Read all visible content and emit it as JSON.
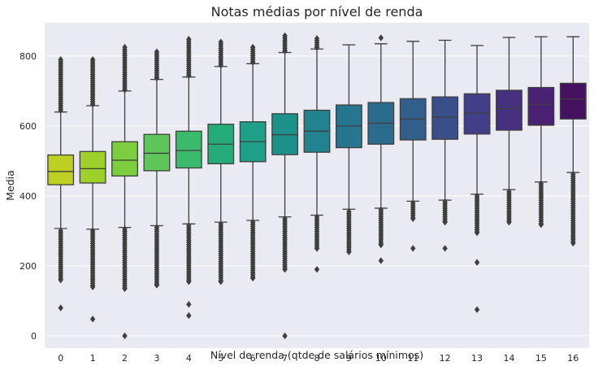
{
  "chart_data": {
    "type": "box",
    "title": "Notas médias por nível de renda",
    "xlabel": "Nível de renda (qtde de salários mínimos)",
    "ylabel": "Media",
    "categories": [
      "0",
      "1",
      "2",
      "3",
      "4",
      "5",
      "6",
      "7",
      "8",
      "9",
      "10",
      "11",
      "12",
      "13",
      "14",
      "15",
      "16"
    ],
    "ylim": [
      -35,
      895
    ],
    "yticks": [
      0,
      200,
      400,
      600,
      800
    ],
    "grid": true,
    "colors": [
      "#bdd023",
      "#9dd02a",
      "#7ccd3f",
      "#5ec65a",
      "#3bb96d",
      "#25ac79",
      "#1f9f87",
      "#1e918b",
      "#22838e",
      "#27768f",
      "#2b6b8e",
      "#325e8c",
      "#3a4f8a",
      "#413f87",
      "#463180",
      "#482173",
      "#461060"
    ],
    "boxes": [
      {
        "category": "0",
        "whisker_low": 307,
        "q1": 432,
        "median": 470,
        "q3": 517,
        "whisker_high": 640,
        "outliers_low": [
          300,
          160,
          80
        ],
        "outliers_high": [
          645,
          790
        ]
      },
      {
        "category": "1",
        "whisker_low": 305,
        "q1": 437,
        "median": 478,
        "q3": 527,
        "whisker_high": 658,
        "outliers_low": [
          300,
          140,
          48
        ],
        "outliers_high": [
          662,
          790
        ]
      },
      {
        "category": "2",
        "whisker_low": 310,
        "q1": 457,
        "median": 502,
        "q3": 555,
        "whisker_high": 700,
        "outliers_low": [
          305,
          135,
          0
        ],
        "outliers_high": [
          703,
          825
        ]
      },
      {
        "category": "3",
        "whisker_low": 315,
        "q1": 472,
        "median": 522,
        "q3": 576,
        "whisker_high": 733,
        "outliers_low": [
          310,
          145
        ],
        "outliers_high": [
          737,
          812
        ]
      },
      {
        "category": "4",
        "whisker_low": 320,
        "q1": 480,
        "median": 530,
        "q3": 585,
        "whisker_high": 740,
        "outliers_low": [
          315,
          155,
          90,
          58
        ],
        "outliers_high": [
          744,
          848
        ]
      },
      {
        "category": "5",
        "whisker_low": 325,
        "q1": 492,
        "median": 548,
        "q3": 605,
        "whisker_high": 770,
        "outliers_low": [
          320,
          155
        ],
        "outliers_high": [
          774,
          840
        ]
      },
      {
        "category": "6",
        "whisker_low": 330,
        "q1": 498,
        "median": 555,
        "q3": 612,
        "whisker_high": 778,
        "outliers_low": [
          325,
          165
        ],
        "outliers_high": [
          782,
          825
        ]
      },
      {
        "category": "7",
        "whisker_low": 340,
        "q1": 518,
        "median": 575,
        "q3": 635,
        "whisker_high": 810,
        "outliers_low": [
          335,
          190,
          0
        ],
        "outliers_high": [
          814,
          858
        ]
      },
      {
        "category": "8",
        "whisker_low": 345,
        "q1": 525,
        "median": 585,
        "q3": 645,
        "whisker_high": 820,
        "outliers_low": [
          340,
          250,
          190
        ],
        "outliers_high": [
          824,
          850
        ]
      },
      {
        "category": "9",
        "whisker_low": 362,
        "q1": 538,
        "median": 600,
        "q3": 660,
        "whisker_high": 832,
        "outliers_low": [
          355,
          240
        ],
        "outliers_high": []
      },
      {
        "category": "10",
        "whisker_low": 365,
        "q1": 548,
        "median": 608,
        "q3": 667,
        "whisker_high": 835,
        "outliers_low": [
          360,
          260,
          215
        ],
        "outliers_high": [
          852
        ]
      },
      {
        "category": "11",
        "whisker_low": 385,
        "q1": 560,
        "median": 620,
        "q3": 678,
        "whisker_high": 842,
        "outliers_low": [
          380,
          335,
          250
        ],
        "outliers_high": []
      },
      {
        "category": "12",
        "whisker_low": 388,
        "q1": 562,
        "median": 625,
        "q3": 683,
        "whisker_high": 845,
        "outliers_low": [
          383,
          325,
          250
        ],
        "outliers_high": []
      },
      {
        "category": "13",
        "whisker_low": 405,
        "q1": 577,
        "median": 637,
        "q3": 692,
        "whisker_high": 830,
        "outliers_low": [
          400,
          295,
          210,
          75
        ],
        "outliers_high": []
      },
      {
        "category": "14",
        "whisker_low": 418,
        "q1": 588,
        "median": 650,
        "q3": 702,
        "whisker_high": 853,
        "outliers_low": [
          412,
          325
        ],
        "outliers_high": []
      },
      {
        "category": "15",
        "whisker_low": 440,
        "q1": 602,
        "median": 662,
        "q3": 710,
        "whisker_high": 855,
        "outliers_low": [
          435,
          318
        ],
        "outliers_high": []
      },
      {
        "category": "16",
        "whisker_low": 467,
        "q1": 620,
        "median": 677,
        "q3": 722,
        "whisker_high": 855,
        "outliers_low": [
          462,
          265
        ],
        "outliers_high": []
      }
    ]
  }
}
